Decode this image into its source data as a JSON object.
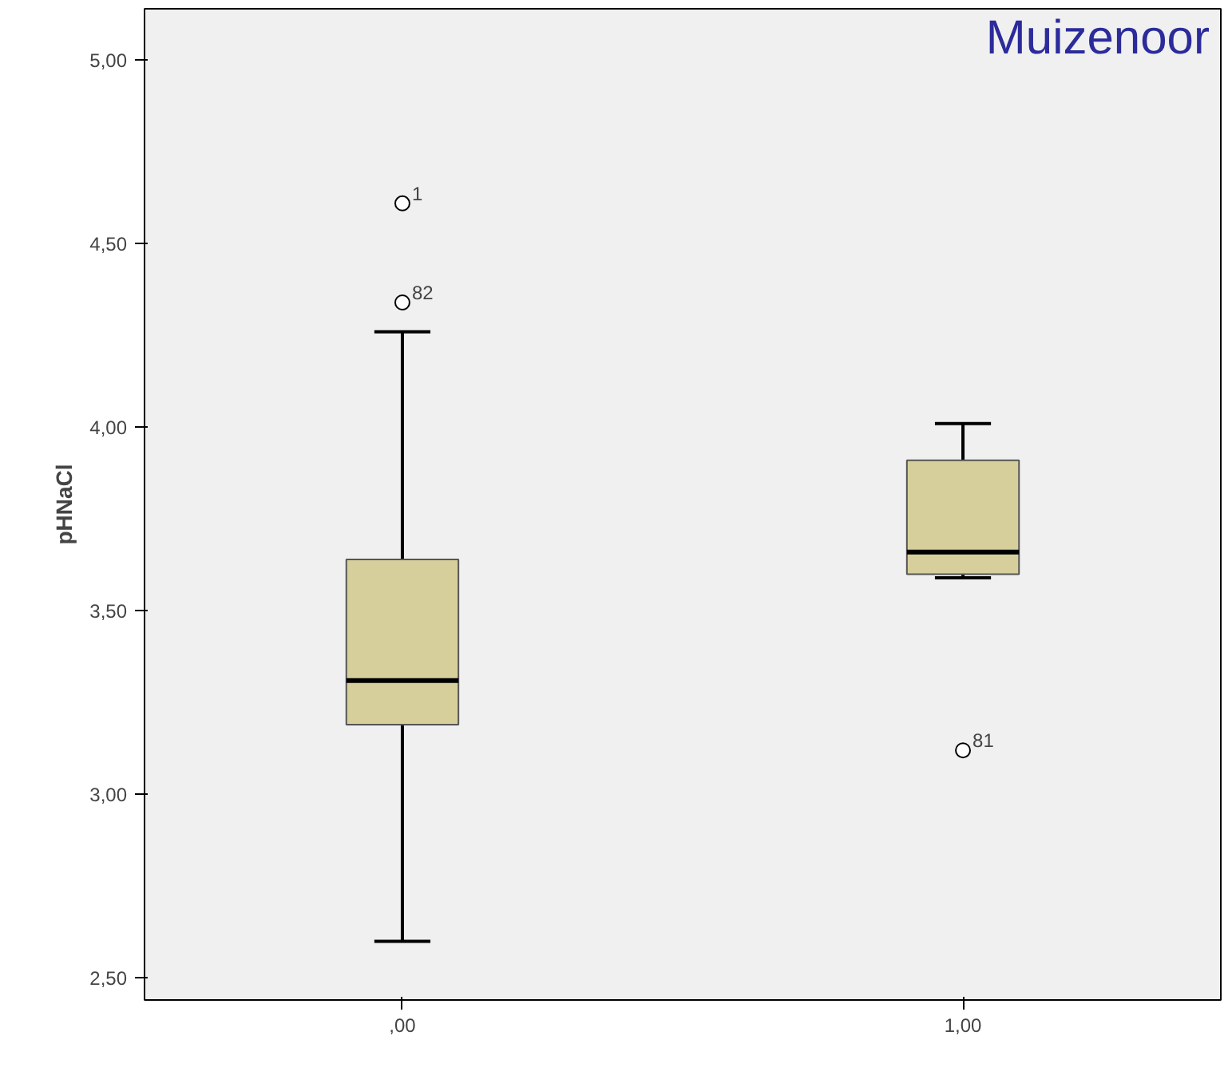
{
  "chart_data": {
    "type": "box",
    "ylabel": "pHNaCl",
    "categories": [
      ",00",
      "1,00"
    ],
    "boxes": [
      {
        "low": 2.6,
        "q1": 3.19,
        "median": 3.31,
        "q3": 3.64,
        "high": 4.26,
        "outliers": [
          4.61,
          4.34
        ]
      },
      {
        "low": 3.59,
        "q1": 3.6,
        "median": 3.66,
        "q3": 3.91,
        "high": 4.01,
        "outliers": [
          3.12
        ]
      }
    ],
    "color": "#d6cf9b",
    "ylim": [
      2.44,
      5.14
    ],
    "yticks": [
      {
        "value": 2.5,
        "label": "2,50"
      },
      {
        "value": 3.0,
        "label": "3,00"
      },
      {
        "value": 3.5,
        "label": "3,50"
      },
      {
        "value": 4.0,
        "label": "4,00"
      },
      {
        "value": 4.5,
        "label": "4,50"
      },
      {
        "value": 5.0,
        "label": "5,00"
      }
    ],
    "grid": false,
    "annotations": [
      "Muizenoor",
      "1",
      "82",
      "81"
    ]
  }
}
